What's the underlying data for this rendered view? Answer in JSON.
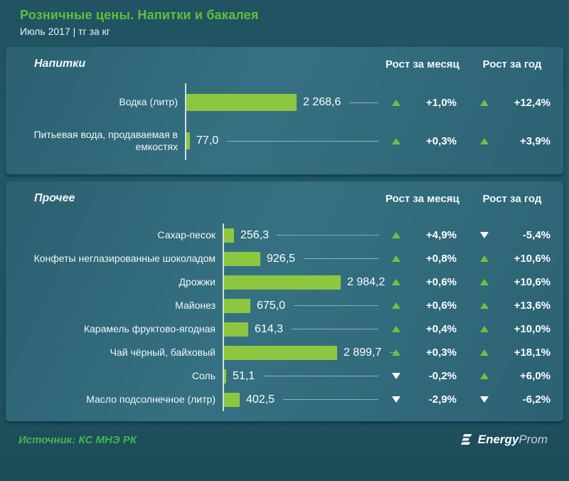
{
  "header": {
    "title": "Розничные  цены. Напитки и бакалея",
    "subtitle": "Июль 2017 | тг за кг"
  },
  "columns": {
    "month": "Рост за месяц",
    "year": "Рост за год"
  },
  "chart_data": [
    {
      "type": "bar",
      "title": "Напитки",
      "unit": "тг за кг",
      "xlim": [
        0,
        2450
      ],
      "legend": "none",
      "rows": [
        {
          "category": "Водка (литр)",
          "value": 2268.6,
          "value_label": "2 268,6",
          "month_change": "+1,0%",
          "month_dir": "up",
          "year_change": "+12,4%",
          "year_dir": "up",
          "leader": "solid"
        },
        {
          "category": "Питьевая вода, продаваемая в емкостях",
          "value": 77.0,
          "value_label": "77,0",
          "month_change": "+0,3%",
          "month_dir": "up",
          "year_change": "+3,9%",
          "year_dir": "up",
          "leader": "solid"
        }
      ]
    },
    {
      "type": "bar",
      "title": "Прочее",
      "unit": "тг за кг",
      "xlim": [
        0,
        3000
      ],
      "legend": "none",
      "rows": [
        {
          "category": "Сахар-песок",
          "value": 256.3,
          "value_label": "256,3",
          "month_change": "+4,9%",
          "month_dir": "up",
          "year_change": "-5,4%",
          "year_dir": "down",
          "leader": "dotted"
        },
        {
          "category": "Конфеты неглазированные шоколадом",
          "value": 926.5,
          "value_label": "926,5",
          "month_change": "+0,8%",
          "month_dir": "up",
          "year_change": "+10,6%",
          "year_dir": "up",
          "leader": "solid"
        },
        {
          "category": "Дрожжи",
          "value": 2984.2,
          "value_label": "2 984,2",
          "month_change": "+0,6%",
          "month_dir": "up",
          "year_change": "+10,6%",
          "year_dir": "up",
          "leader": "solid"
        },
        {
          "category": "Майонез",
          "value": 675.0,
          "value_label": "675,0",
          "month_change": "+0,6%",
          "month_dir": "up",
          "year_change": "+13,6%",
          "year_dir": "up",
          "leader": "solid"
        },
        {
          "category": "Карамель фруктово-ягодная",
          "value": 614.3,
          "value_label": "614,3",
          "month_change": "+0,4%",
          "month_dir": "up",
          "year_change": "+10,0%",
          "year_dir": "up",
          "leader": "solid"
        },
        {
          "category": "Чай чёрный, байховый",
          "value": 2899.7,
          "value_label": "2 899,7",
          "month_change": "+0,3%",
          "month_dir": "up",
          "year_change": "+18,1%",
          "year_dir": "up",
          "leader": "solid"
        },
        {
          "category": "Соль",
          "value": 51.1,
          "value_label": "51,1",
          "month_change": "-0,2%",
          "month_dir": "down",
          "year_change": "+6,0%",
          "year_dir": "up",
          "leader": "solid"
        },
        {
          "category": "Масло подсолнечное (литр)",
          "value": 402.5,
          "value_label": "402,5",
          "month_change": "-2,9%",
          "month_dir": "down",
          "year_change": "-6,2%",
          "year_dir": "down",
          "leader": "solid"
        }
      ]
    }
  ],
  "footer": {
    "source": "Источник: КС МНЭ РК",
    "logo_bold": "Energy",
    "logo_light": "Prom"
  },
  "colors": {
    "bar": "#8dc63f",
    "up_triangle": "#6fc13f",
    "down_triangle": "#ffffff",
    "title_green": "#5ec03c",
    "source_green": "#46b649",
    "panel": "#33707f",
    "background": "#215865"
  }
}
